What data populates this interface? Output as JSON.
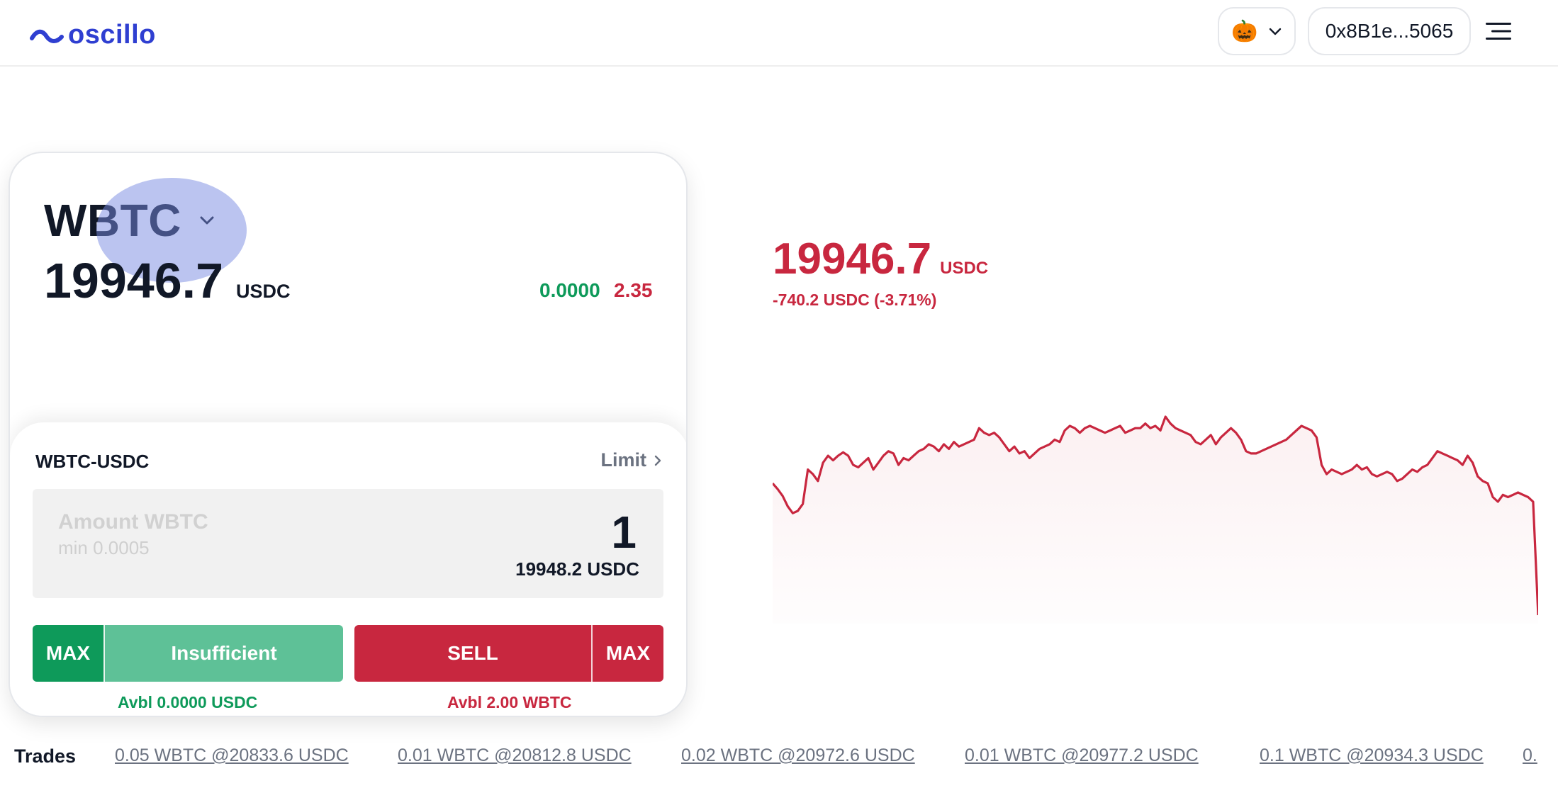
{
  "header": {
    "app_name": "oscillo",
    "theme_emoji": "🎃",
    "wallet": "0x8B1e...5065"
  },
  "market": {
    "asset": "WBTC",
    "price": "19946.7",
    "quote": "USDC",
    "stat_green": "0.0000",
    "stat_red": "2.35"
  },
  "order": {
    "pair": "WBTC-USDC",
    "type": "Limit",
    "amount_placeholder": "Amount WBTC",
    "amount_min": "min 0.0005",
    "amount_value": "1",
    "amount_quote": "19948.2 USDC",
    "buy_max": "MAX",
    "buy_label": "Insufficient",
    "sell_label": "SELL",
    "sell_max": "MAX",
    "avbl_buy": "Avbl 0.0000 USDC",
    "avbl_sell": "Avbl 2.00 WBTC"
  },
  "summary": {
    "price": "19946.7",
    "unit": "USDC",
    "change": "-740.2 USDC (-3.71%)"
  },
  "chart_data": {
    "type": "line",
    "color": "#c8273f",
    "values": [
      20520,
      20495,
      20465,
      20420,
      20390,
      20400,
      20430,
      20580,
      20560,
      20530,
      20610,
      20640,
      20620,
      20640,
      20655,
      20640,
      20600,
      20590,
      20610,
      20630,
      20580,
      20610,
      20640,
      20660,
      20650,
      20600,
      20630,
      20620,
      20640,
      20660,
      20670,
      20690,
      20680,
      20660,
      20690,
      20670,
      20700,
      20680,
      20690,
      20700,
      20710,
      20760,
      20740,
      20730,
      20740,
      20720,
      20690,
      20660,
      20680,
      20650,
      20660,
      20630,
      20650,
      20670,
      20680,
      20690,
      20710,
      20700,
      20750,
      20770,
      20760,
      20740,
      20760,
      20770,
      20760,
      20750,
      20740,
      20750,
      20760,
      20770,
      20740,
      20750,
      20760,
      20760,
      20780,
      20760,
      20770,
      20750,
      20810,
      20780,
      20760,
      20750,
      20740,
      20730,
      20700,
      20690,
      20710,
      20730,
      20690,
      20720,
      20740,
      20760,
      20740,
      20710,
      20660,
      20650,
      20650,
      20660,
      20670,
      20680,
      20690,
      20700,
      20710,
      20730,
      20750,
      20770,
      20760,
      20750,
      20720,
      20600,
      20560,
      20580,
      20570,
      20560,
      20570,
      20580,
      20600,
      20580,
      20590,
      20560,
      20550,
      20560,
      20570,
      20560,
      20530,
      20540,
      20560,
      20580,
      20570,
      20590,
      20600,
      20630,
      20660,
      20650,
      20640,
      20630,
      20620,
      20600,
      20640,
      20610,
      20550,
      20530,
      20520,
      20460,
      20440,
      20470,
      20460,
      20470,
      20480,
      20470,
      20460,
      20440,
      19946.7
    ]
  },
  "trades": {
    "label": "Trades",
    "items": [
      "0.05 WBTC @20833.6 USDC",
      "0.01 WBTC @20812.8 USDC",
      "0.02 WBTC @20972.6 USDC",
      "0.01 WBTC @20977.2 USDC",
      "0.1 WBTC @20934.3 USDC",
      "0."
    ]
  }
}
